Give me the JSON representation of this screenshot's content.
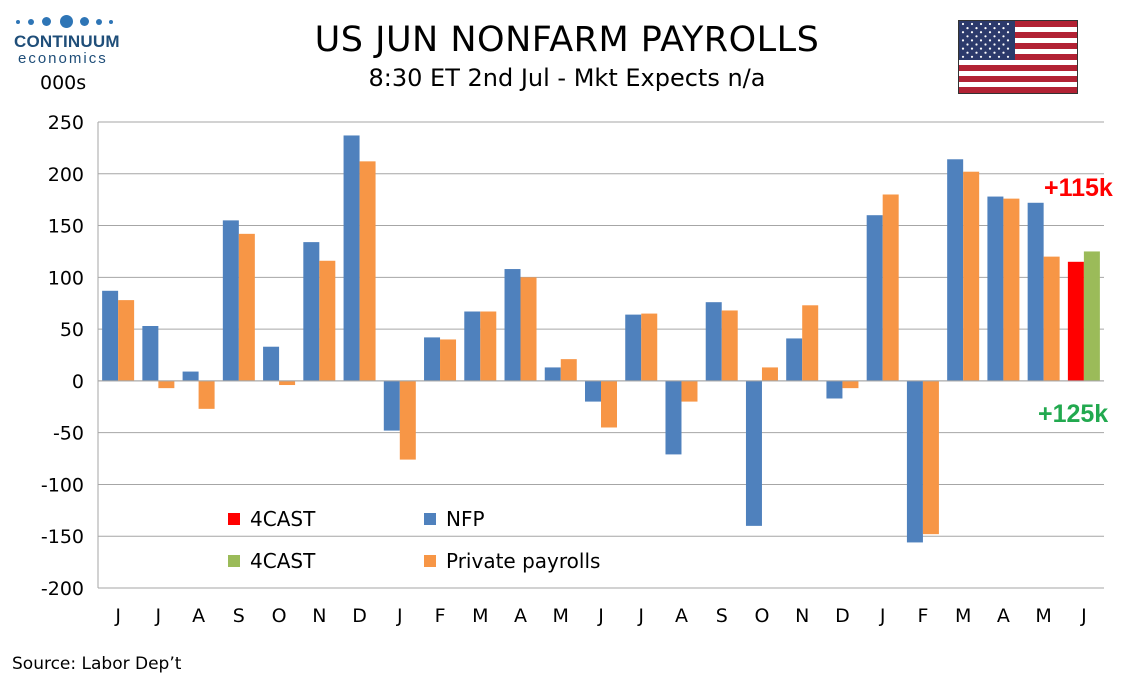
{
  "header": {
    "title": "US JUN NONFARM PAYROLLS",
    "subtitle": "8:30 ET 2nd Jul - Mkt Expects n/a",
    "units": "000s"
  },
  "logo": {
    "name": "CONTINUUM",
    "sub": "economics"
  },
  "annotations": {
    "red_label": "+115k",
    "green_label": "+125k"
  },
  "source": "Source: Labor Dep’t",
  "colors": {
    "nfp": "#4f81bd",
    "private": "#f79646",
    "forecast_red": "#ff0000",
    "forecast_green": "#9bbb59",
    "annotation_green": "#22a94f",
    "flag_red": "#b22234",
    "flag_blue": "#2c3a6b"
  },
  "chart_data": {
    "type": "bar",
    "categories": [
      "J",
      "J",
      "A",
      "S",
      "O",
      "N",
      "D",
      "J",
      "F",
      "M",
      "A",
      "M",
      "J",
      "J",
      "A",
      "S",
      "O",
      "N",
      "D",
      "J",
      "F",
      "M",
      "A",
      "M",
      "J"
    ],
    "ylim": [
      -200,
      250
    ],
    "yticks": [
      250,
      200,
      150,
      100,
      50,
      0,
      -50,
      -100,
      -150,
      -200
    ],
    "grid": true,
    "series": [
      {
        "name": "NFP",
        "color": "#4f81bd",
        "values": [
          87,
          53,
          9,
          155,
          33,
          134,
          237,
          -48,
          42,
          67,
          108,
          13,
          -20,
          64,
          -71,
          76,
          -140,
          41,
          -17,
          160,
          -156,
          214,
          178,
          172,
          null
        ]
      },
      {
        "name": "Private payrolls",
        "color": "#f79646",
        "values": [
          78,
          -7,
          -27,
          142,
          -4,
          116,
          212,
          -76,
          40,
          67,
          100,
          21,
          -45,
          65,
          -20,
          68,
          13,
          73,
          -7,
          180,
          -148,
          202,
          176,
          120,
          null
        ]
      },
      {
        "name": "4CAST",
        "color": "#ff0000",
        "values": [
          null,
          null,
          null,
          null,
          null,
          null,
          null,
          null,
          null,
          null,
          null,
          null,
          null,
          null,
          null,
          null,
          null,
          null,
          null,
          null,
          null,
          null,
          null,
          null,
          115
        ]
      },
      {
        "name": "4CAST",
        "color": "#9bbb59",
        "values": [
          null,
          null,
          null,
          null,
          null,
          null,
          null,
          null,
          null,
          null,
          null,
          null,
          null,
          null,
          null,
          null,
          null,
          null,
          null,
          null,
          null,
          null,
          null,
          null,
          125
        ]
      }
    ],
    "legend": {
      "placement": "bottom-left",
      "entries": [
        {
          "label": "4CAST",
          "color": "#ff0000"
        },
        {
          "label": "NFP",
          "color": "#4f81bd"
        },
        {
          "label": "4CAST",
          "color": "#9bbb59"
        },
        {
          "label": "Private payrolls",
          "color": "#f79646"
        }
      ]
    }
  }
}
